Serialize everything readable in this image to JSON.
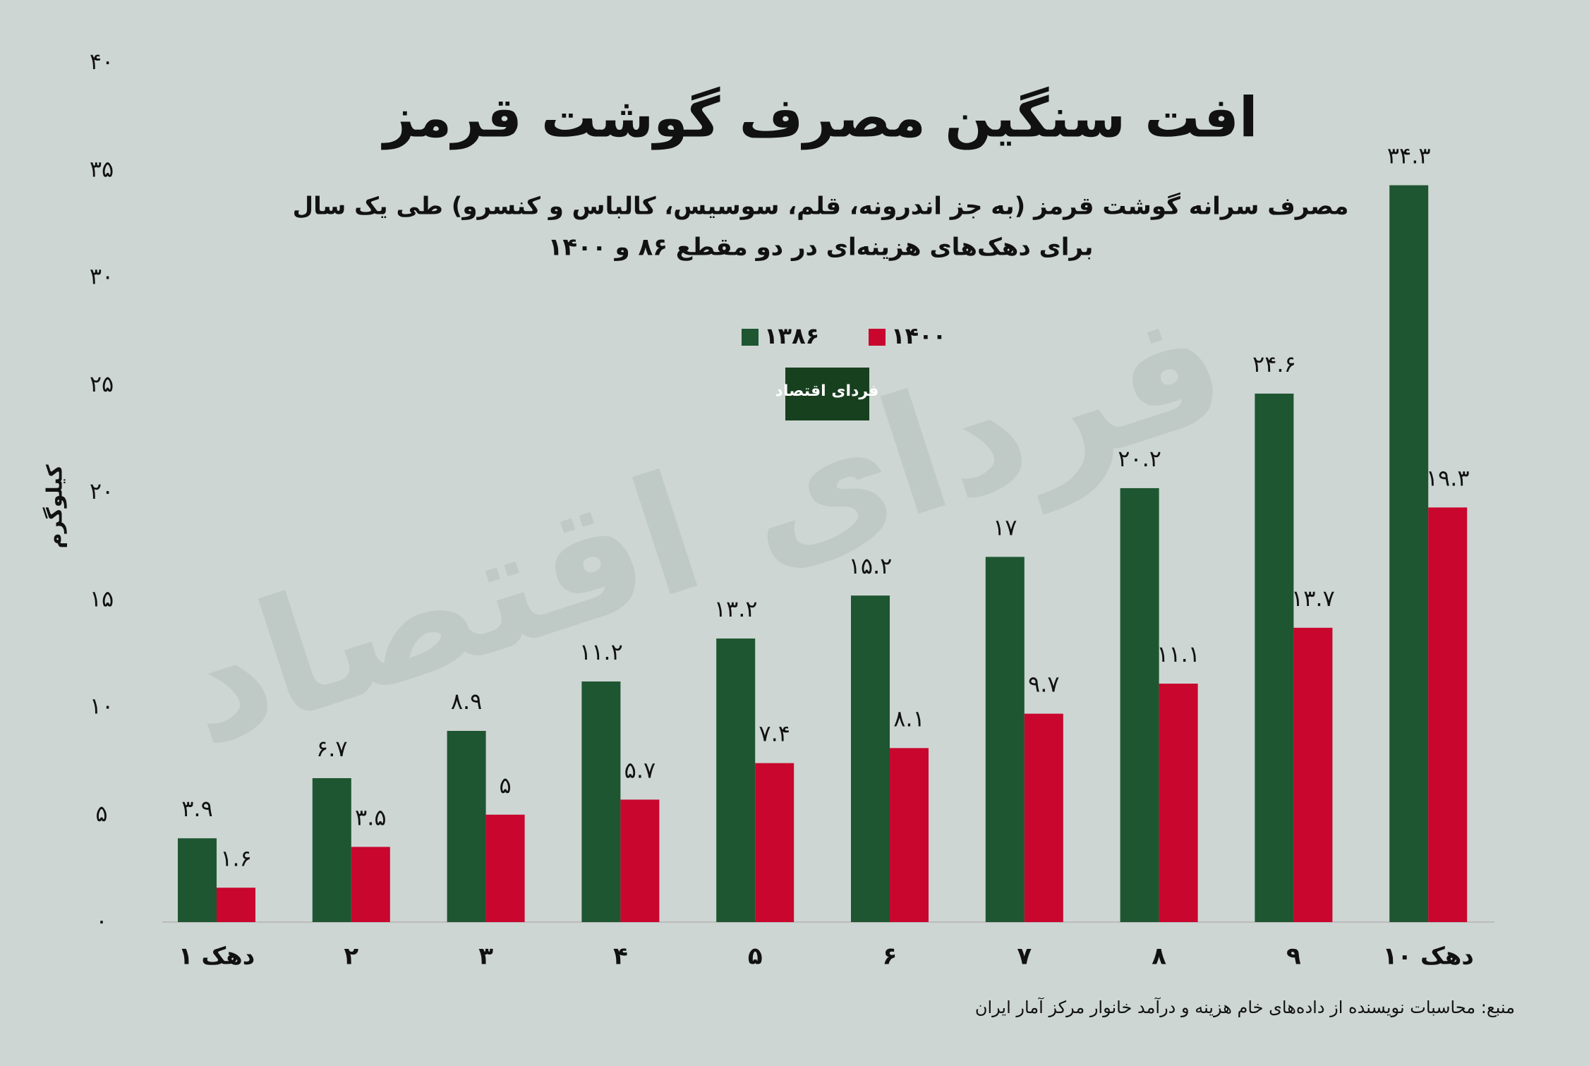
{
  "chart_data": {
    "type": "bar",
    "title": "افت سنگین مصرف گوشت قرمز",
    "subtitle": [
      "مصرف سرانه گوشت قرمز (به جز اندرونه، قلم، سوسیس، کالباس و کنسرو) طی یک سال",
      "برای دهک‌های هزینه‌ای در دو مقطع ۸۶ و ۱۴۰۰"
    ],
    "y_label": "کیلوگرم",
    "categories": [
      "دهک ۱",
      "۲",
      "۳",
      "۴",
      "۵",
      "۶",
      "۷",
      "۸",
      "۹",
      "دهک ۱۰"
    ],
    "series": [
      {
        "name": "۱۳۸۶",
        "color": "#1e5631",
        "values": [
          3.9,
          6.7,
          8.9,
          11.2,
          13.2,
          15.2,
          17,
          20.2,
          24.6,
          34.3
        ],
        "value_labels": [
          "۳.۹",
          "۶.۷",
          "۸.۹",
          "۱۱.۲",
          "۱۳.۲",
          "۱۵.۲",
          "۱۷",
          "۲۰.۲",
          "۲۴.۶",
          "۳۴.۳"
        ]
      },
      {
        "name": "۱۴۰۰",
        "color": "#c8062e",
        "values": [
          1.6,
          3.5,
          5,
          5.7,
          7.4,
          8.1,
          9.7,
          11.1,
          13.7,
          19.3
        ],
        "value_labels": [
          "۱.۶",
          "۳.۵",
          "۵",
          "۵.۷",
          "۷.۴",
          "۸.۱",
          "۹.۷",
          "۱۱.۱",
          "۱۳.۷",
          "۱۹.۳"
        ]
      }
    ],
    "ylim": [
      0,
      40
    ],
    "yticks": [
      {
        "value": 0,
        "label": "۰"
      },
      {
        "value": 5,
        "label": "۵"
      },
      {
        "value": 10,
        "label": "۱۰"
      },
      {
        "value": 15,
        "label": "۱۵"
      },
      {
        "value": 20,
        "label": "۲۰"
      },
      {
        "value": 25,
        "label": "۲۵"
      },
      {
        "value": 30,
        "label": "۳۰"
      },
      {
        "value": 35,
        "label": "۳۵"
      },
      {
        "value": 40,
        "label": "۴۰"
      }
    ],
    "source": "منبع: محاسبات نویسنده از داده‌های خام هزینه و درآمد خانوار مرکز آمار ایران",
    "logo": "فردای اقتصاد"
  }
}
